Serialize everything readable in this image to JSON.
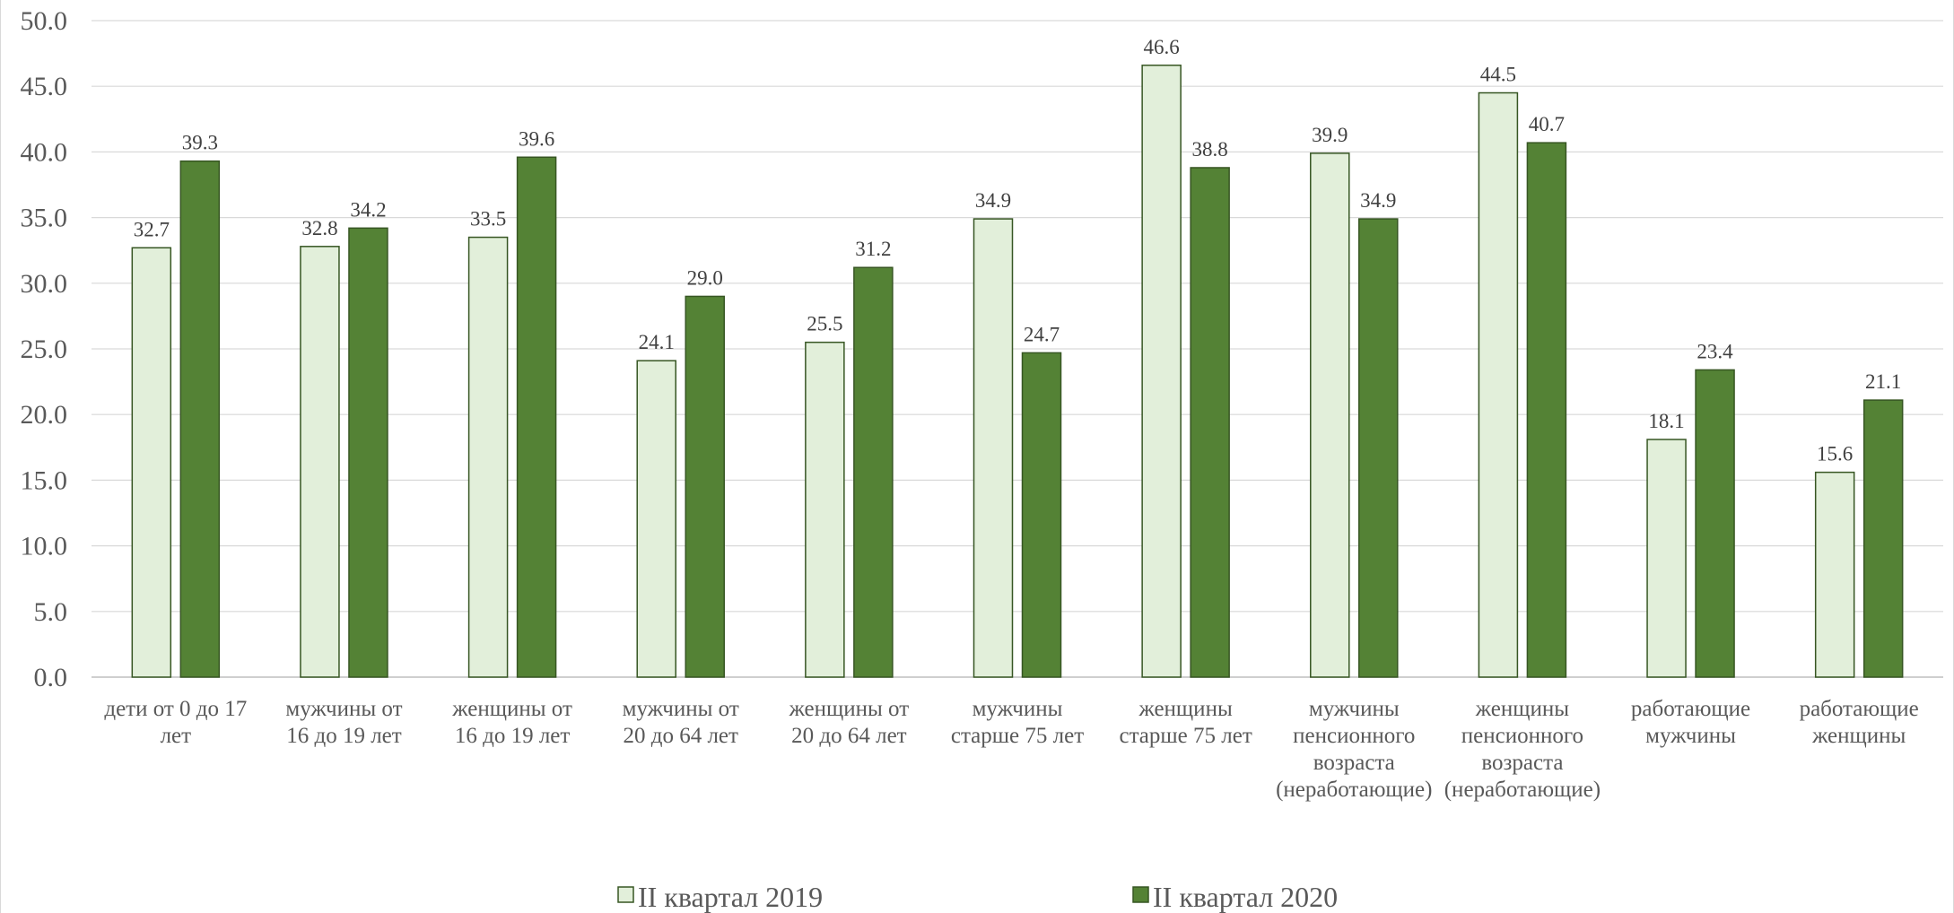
{
  "chart_data": {
    "type": "bar",
    "categories": [
      [
        "дети от 0 до 17",
        "лет"
      ],
      [
        "мужчины от",
        "16 до 19 лет"
      ],
      [
        "женщины от",
        "16 до 19 лет"
      ],
      [
        "мужчины от",
        "20 до 64 лет"
      ],
      [
        "женщины от",
        "20 до 64 лет"
      ],
      [
        "мужчины",
        "старше 75 лет"
      ],
      [
        "женщины",
        "старше 75 лет"
      ],
      [
        "мужчины",
        "пенсионного",
        "возраста",
        "(неработающие)"
      ],
      [
        "женщины",
        "пенсионного",
        "возраста",
        "(неработающие)"
      ],
      [
        "работающие",
        "мужчины"
      ],
      [
        "работающие",
        "женщины"
      ]
    ],
    "series": [
      {
        "name": "II квартал 2019",
        "color": "#e2efda",
        "values": [
          32.7,
          32.8,
          33.5,
          24.1,
          25.5,
          34.9,
          46.6,
          39.9,
          44.5,
          18.1,
          15.6
        ]
      },
      {
        "name": "II квартал 2020",
        "color": "#548235",
        "values": [
          39.3,
          34.2,
          39.6,
          29.0,
          31.2,
          24.7,
          38.8,
          34.9,
          40.7,
          23.4,
          21.1
        ]
      }
    ],
    "bar_edge_color": "#375623",
    "ylim": [
      0,
      50
    ],
    "yticks": [
      "0.0",
      "5.0",
      "10.0",
      "15.0",
      "20.0",
      "25.0",
      "30.0",
      "35.0",
      "40.0",
      "45.0",
      "50.0"
    ],
    "grid": true,
    "legend_position": "bottom",
    "title": "",
    "xlabel": "",
    "ylabel": ""
  }
}
